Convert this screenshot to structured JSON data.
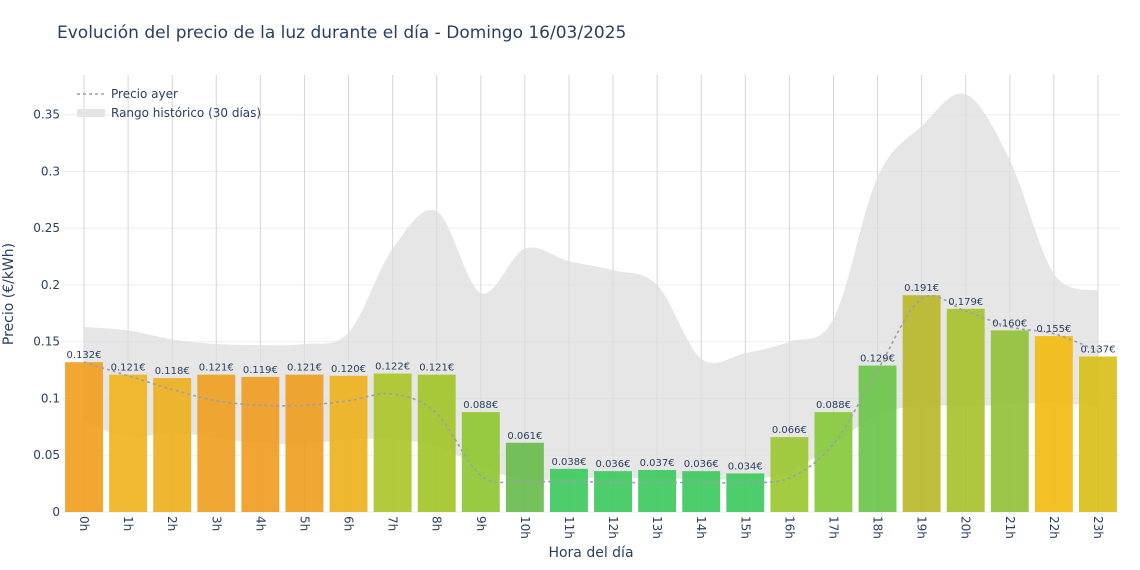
{
  "chart_data": {
    "type": "bar",
    "title": "Evolución del precio de la luz durante el día - Domingo 16/03/2025",
    "xlabel": "Hora del día",
    "ylabel": "Precio (€/kWh)",
    "ylim": [
      0,
      0.385
    ],
    "yticks": [
      "0",
      "0.05",
      "0.1",
      "0.15",
      "0.2",
      "0.25",
      "0.3",
      "0.35"
    ],
    "categories": [
      "0h",
      "1h",
      "2h",
      "3h",
      "4h",
      "5h",
      "6h",
      "7h",
      "8h",
      "9h",
      "10h",
      "11h",
      "12h",
      "13h",
      "14h",
      "15h",
      "16h",
      "17h",
      "18h",
      "19h",
      "20h",
      "21h",
      "22h",
      "23h"
    ],
    "values": [
      0.132,
      0.121,
      0.118,
      0.121,
      0.119,
      0.121,
      0.12,
      0.122,
      0.121,
      0.088,
      0.061,
      0.038,
      0.036,
      0.037,
      0.036,
      0.034,
      0.066,
      0.088,
      0.129,
      0.191,
      0.179,
      0.16,
      0.155,
      0.137
    ],
    "labels": [
      "0.132€",
      "0.121€",
      "0.118€",
      "0.121€",
      "0.119€",
      "0.121€",
      "0.120€",
      "0.122€",
      "0.121€",
      "0.088€",
      "0.061€",
      "0.038€",
      "0.036€",
      "0.037€",
      "0.036€",
      "0.034€",
      "0.066€",
      "0.088€",
      "0.129€",
      "0.191€",
      "0.179€",
      "0.160€",
      "0.155€",
      "0.137€"
    ],
    "bar_colors": [
      "#f0a020",
      "#f0b41e",
      "#eeb01f",
      "#ef9f22",
      "#ef9d24",
      "#ef9e22",
      "#eeb21f",
      "#abc62a",
      "#a3c52b",
      "#8fc732",
      "#69bc4e",
      "#3ec95e",
      "#3ec95e",
      "#3ec95e",
      "#3ec95e",
      "#3ec95e",
      "#9cc832",
      "#86c93b",
      "#6dc64a",
      "#bab82b",
      "#a8c22e",
      "#92c13b",
      "#f2bc13",
      "#d7c11a"
    ],
    "series": [
      {
        "name": "Precio ayer",
        "style": "dashed",
        "color": "#9aa0a8",
        "values": [
          0.132,
          0.12,
          0.108,
          0.098,
          0.094,
          0.094,
          0.098,
          0.104,
          0.087,
          0.032,
          0.027,
          0.027,
          0.026,
          0.026,
          0.026,
          0.026,
          0.03,
          0.06,
          0.125,
          0.188,
          0.177,
          0.163,
          0.157,
          0.142
        ]
      },
      {
        "name": "Rango histórico (30 días)",
        "style": "band",
        "color": "#dcdcdc",
        "upper": [
          0.163,
          0.16,
          0.152,
          0.148,
          0.147,
          0.148,
          0.158,
          0.232,
          0.265,
          0.193,
          0.232,
          0.221,
          0.213,
          0.2,
          0.135,
          0.14,
          0.15,
          0.17,
          0.295,
          0.34,
          0.368,
          0.31,
          0.21,
          0.195
        ],
        "lower": [
          0.08,
          0.066,
          0.07,
          0.065,
          0.061,
          0.06,
          0.064,
          0.064,
          0.058,
          0.04,
          0.028,
          0.03,
          0.03,
          0.03,
          0.029,
          0.029,
          0.035,
          0.06,
          0.085,
          0.094,
          0.093,
          0.095,
          0.096,
          0.093
        ]
      }
    ],
    "legend_position": "top-left",
    "grid": true
  }
}
